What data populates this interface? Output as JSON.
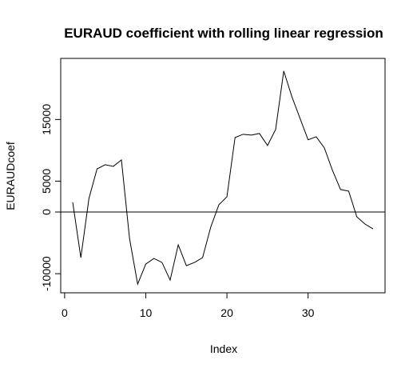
{
  "chart_data": {
    "type": "line",
    "title": "EURAUD coefficient with rolling linear regression",
    "x_label": "Index",
    "y_label": "EURAUDcoef",
    "x": [
      1,
      2,
      3,
      4,
      5,
      6,
      7,
      8,
      9,
      10,
      11,
      12,
      13,
      14,
      15,
      16,
      17,
      18,
      19,
      20,
      21,
      22,
      23,
      24,
      25,
      26,
      27,
      28,
      29,
      30,
      31,
      32,
      33,
      34,
      35,
      36,
      37,
      38
    ],
    "series": [
      {
        "color": "#000000",
        "values": [
          1560,
          -7400,
          2200,
          7000,
          7660,
          7400,
          8440,
          -4300,
          -11700,
          -8440,
          -7530,
          -8180,
          -11040,
          -5320,
          -8700,
          -8180,
          -7400,
          -2470,
          1170,
          2470,
          12080,
          12600,
          12470,
          12730,
          10780,
          13380,
          22860,
          18700,
          15200,
          11700,
          12200,
          10400,
          6750,
          3640,
          3380,
          -780,
          -1950,
          -2730
        ]
      }
    ],
    "xlim": [
      -0.48,
      39.48
    ],
    "ylim": [
      -13100,
      24900
    ],
    "xticks": [
      0,
      10,
      20,
      30
    ],
    "yticks": [
      -10000,
      0,
      5000,
      15000
    ],
    "hline": 0
  }
}
